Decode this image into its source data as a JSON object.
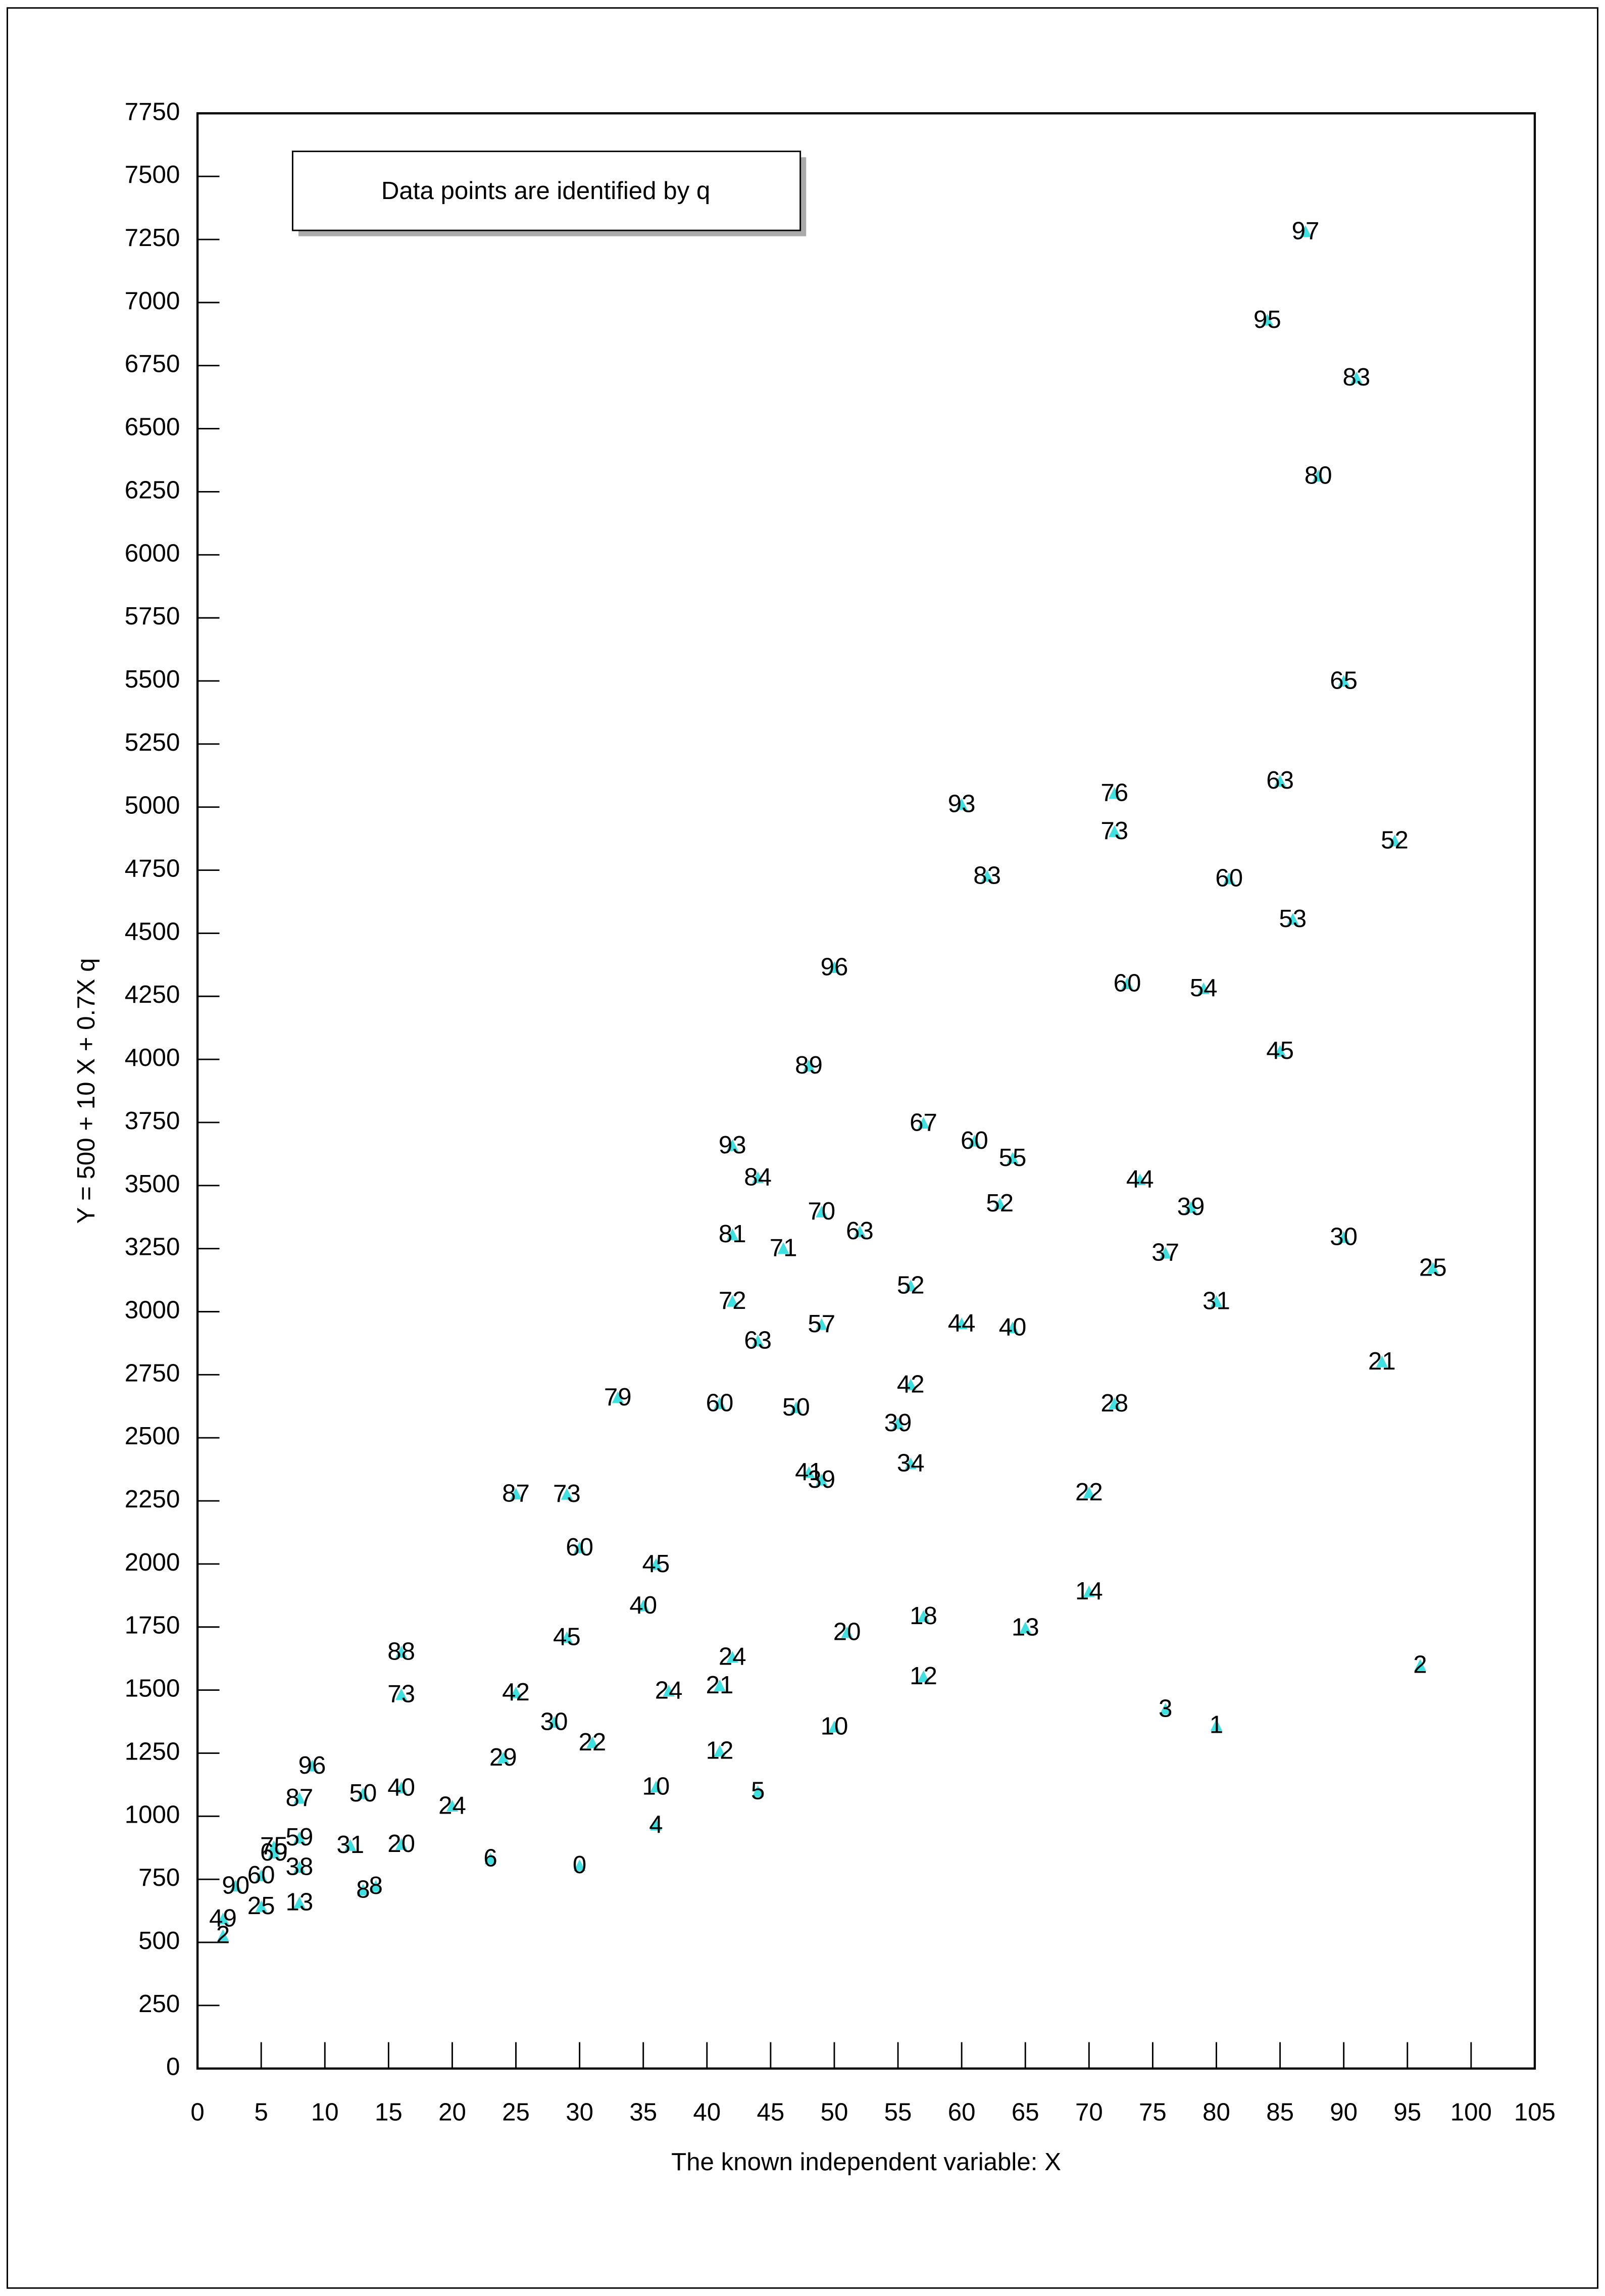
{
  "chart_data": {
    "type": "scatter",
    "xlabel": "The known independent variable: X",
    "ylabel": "Y = 500 + 10 X + 0.7X q",
    "legend_text": "Data points are identified by q",
    "xlim": [
      0,
      105
    ],
    "ylim": [
      0,
      7750
    ],
    "xticks": [
      0,
      5,
      10,
      15,
      20,
      25,
      30,
      35,
      40,
      45,
      50,
      55,
      60,
      65,
      70,
      75,
      80,
      85,
      90,
      95,
      100,
      105
    ],
    "yticks": [
      0,
      250,
      500,
      750,
      1000,
      1250,
      1500,
      1750,
      2000,
      2250,
      2500,
      2750,
      3000,
      3250,
      3500,
      3750,
      4000,
      4250,
      4500,
      4750,
      5000,
      5250,
      5500,
      5750,
      6000,
      6250,
      6500,
      6750,
      7000,
      7250,
      7500,
      7750
    ],
    "series": [
      {
        "color": "#40e0e0",
        "x": [
          87,
          84,
          91,
          88,
          90,
          60,
          72,
          72,
          85,
          94,
          62,
          81,
          86,
          50,
          73,
          79,
          85,
          48,
          57,
          61,
          64,
          42,
          44,
          74,
          63,
          78,
          49,
          52,
          42,
          46,
          76,
          90,
          97,
          56,
          42,
          80,
          49,
          60,
          64,
          44,
          93,
          56,
          33,
          41,
          47,
          72,
          55,
          56,
          48,
          49,
          25,
          29,
          70,
          30,
          36,
          70,
          35,
          57,
          29,
          51,
          65,
          16,
          42,
          96,
          57,
          16,
          25,
          37,
          41,
          76,
          80,
          28,
          50,
          31,
          41,
          24,
          9,
          36,
          44,
          16,
          13,
          8,
          20,
          36,
          8,
          6,
          6,
          12,
          16,
          23,
          30,
          8,
          5,
          3,
          13,
          14,
          8,
          5,
          2,
          2
        ],
        "values": [
          7277,
          6926,
          6697,
          6308,
          5495,
          5006,
          5050,
          4899,
          5099,
          4862,
          4722,
          4712,
          4551,
          4360,
          4296,
          4276,
          4028,
          3970,
          3743,
          3672,
          3604,
          3654,
          3527,
          3519,
          3423,
          3409,
          3391,
          3313,
          3301,
          3246,
          3228,
          3290,
          3168,
          3098,
          3037,
          3036,
          2945,
          2948,
          2932,
          2880,
          2797,
          2706,
          2655,
          2632,
          2615,
          2631,
          2552,
          2393,
          2358,
          2328,
          2273,
          2272,
          2278,
          2060,
          1994,
          1886,
          1830,
          1788,
          1704,
          1724,
          1742,
          1646,
          1626,
          1594,
          1549,
          1478,
          1485,
          1492,
          1513,
          1420,
          1356,
          1368,
          1350,
          1287,
          1254,
          1227,
          1195,
          1112,
          1094,
          1108,
          1085,
          1067,
          1036,
          961,
          910,
          875,
          850,
          880,
          884,
          827,
          800,
          793,
          760,
          719,
          703,
          718,
          653,
          638,
          589,
          523
        ],
        "point_labels": [
          97,
          95,
          83,
          80,
          65,
          93,
          76,
          73,
          63,
          52,
          83,
          60,
          53,
          96,
          60,
          54,
          45,
          89,
          67,
          60,
          55,
          93,
          84,
          44,
          52,
          39,
          70,
          63,
          81,
          71,
          37,
          30,
          25,
          52,
          72,
          31,
          57,
          44,
          40,
          63,
          21,
          42,
          79,
          60,
          50,
          28,
          39,
          34,
          41,
          39,
          87,
          73,
          22,
          60,
          45,
          14,
          40,
          18,
          45,
          20,
          13,
          88,
          24,
          2,
          12,
          73,
          42,
          24,
          21,
          3,
          1,
          30,
          10,
          22,
          12,
          29,
          96,
          10,
          5,
          40,
          50,
          87,
          24,
          4,
          59,
          75,
          69,
          31,
          20,
          6,
          0,
          38,
          60,
          90,
          8,
          8,
          13,
          25,
          49,
          2
        ]
      }
    ]
  }
}
